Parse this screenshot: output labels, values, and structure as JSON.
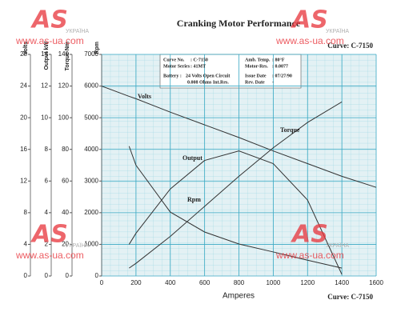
{
  "chart_data": {
    "type": "line",
    "title": "Cranking Motor Performance",
    "curve_label": "Curve: C-7150",
    "xlabel": "Amperes",
    "xlim": [
      0,
      1600
    ],
    "xticks": [
      0,
      200,
      400,
      600,
      800,
      1000,
      1200,
      1400,
      1600
    ],
    "ylabel": "Volts",
    "ylim": [
      0,
      28
    ],
    "yticks": [
      0,
      4,
      8,
      12,
      16,
      20,
      24,
      28
    ],
    "y2label": "Output kW",
    "y2lim": [
      0,
      14
    ],
    "y2ticks": [
      0,
      2,
      4,
      6,
      8,
      10,
      12,
      14
    ],
    "y3label": "Torque Nm",
    "y3lim": [
      0,
      140
    ],
    "y3ticks": [
      0,
      20,
      40,
      60,
      80,
      100,
      120,
      140
    ],
    "y4label": "Rpm",
    "y4lim": [
      0,
      7000
    ],
    "y4ticks": [
      0,
      1000,
      2000,
      3000,
      4000,
      5000,
      6000,
      7000
    ],
    "grid": true,
    "x": [
      0,
      160,
      200,
      400,
      600,
      800,
      1000,
      1200,
      1400,
      1600
    ],
    "series": [
      {
        "name": "Volts",
        "color": "#333333",
        "axis": "y",
        "values": [
          24,
          22.7,
          22.4,
          20.7,
          19.1,
          17.5,
          15.8,
          14.2,
          12.6,
          11.2
        ]
      },
      {
        "name": "Torque",
        "color": "#333333",
        "axis": "y3",
        "values": [
          null,
          5,
          8,
          25,
          44,
          63,
          81,
          97,
          110,
          null
        ]
      },
      {
        "name": "Output",
        "color": "#333333",
        "axis": "y2",
        "values": [
          null,
          2.0,
          2.7,
          5.5,
          7.3,
          7.9,
          7.1,
          4.8,
          0.1,
          null
        ]
      },
      {
        "name": "Rpm",
        "color": "#333333",
        "axis": "y4",
        "values": [
          null,
          4100,
          3500,
          2020,
          1390,
          1010,
          760,
          500,
          250,
          null
        ]
      }
    ],
    "info": [
      [
        "Curve No.",
        ": C-7150"
      ],
      [
        "Motor Series",
        ": 41MT"
      ],
      [
        "Battery :",
        "24 Volts Open Circuit"
      ],
      [
        "",
        "0.008 Ohms Int.Res."
      ],
      [
        "Amb. Temp.",
        ": 80°F"
      ],
      [
        "Motor-Res.",
        ": 0.0077"
      ],
      [
        "Issue Date",
        ": 07/27/90"
      ],
      [
        "Rev. Date",
        "-"
      ]
    ],
    "watermarks": [
      "AS",
      "www.as-ua.com",
      "УКРАЇНА"
    ]
  }
}
